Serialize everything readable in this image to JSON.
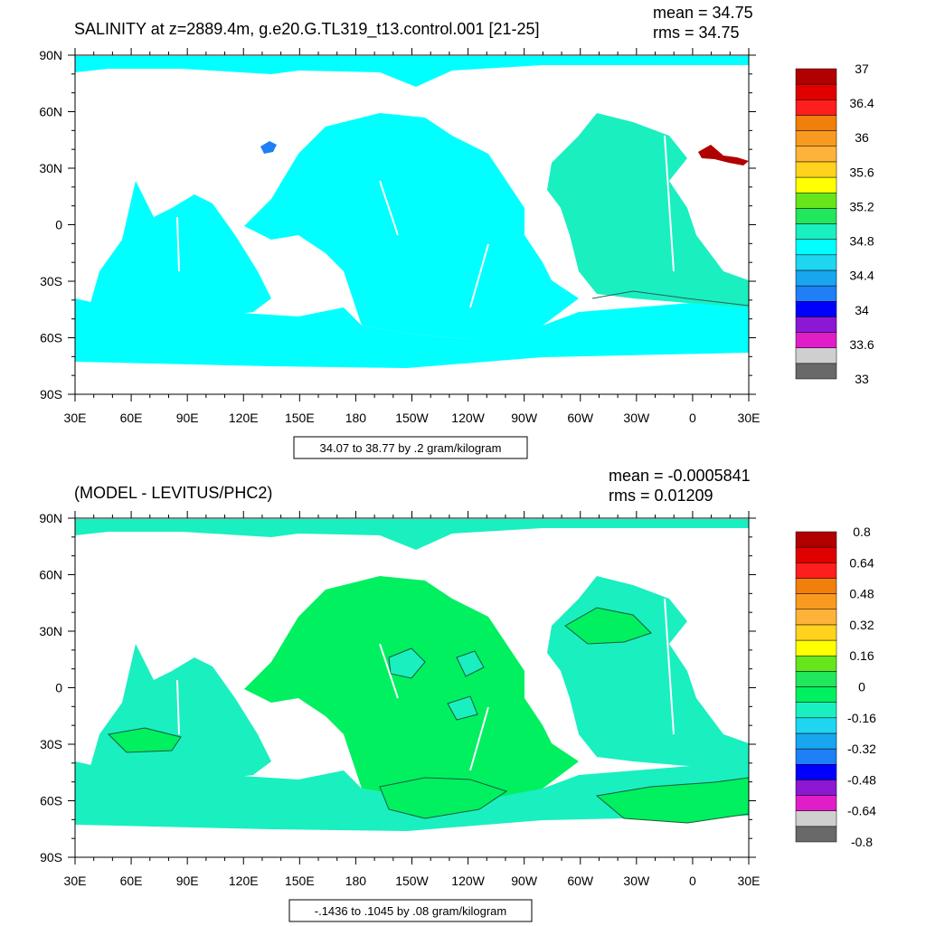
{
  "chart_data": [
    {
      "type": "heatmap",
      "title": "SALINITY at z=2889.4m, g.e20.G.TL319_t13.control.001 [21-25]",
      "stats": {
        "mean": "mean = 34.75",
        "rms": "rms = 34.75"
      },
      "x_ticks": [
        "30E",
        "60E",
        "90E",
        "120E",
        "150E",
        "180",
        "150W",
        "120W",
        "90W",
        "60W",
        "30W",
        "0",
        "30E"
      ],
      "y_ticks": [
        "90N",
        "60N",
        "30N",
        "0",
        "30S",
        "60S",
        "90S"
      ],
      "xlim": [
        30,
        390
      ],
      "ylim": [
        -90,
        90
      ],
      "contour_info": "34.07 to 38.77 by .2 gram/kilogram",
      "colorbar": {
        "colors": [
          "#696969",
          "#cfcfcf",
          "#e01ec8",
          "#8d18d4",
          "#0000ff",
          "#1e7ff7",
          "#18a6ee",
          "#1ed6f0",
          "#00ffff",
          "#1aefc0",
          "#22e65c",
          "#66e61a",
          "#ffff00",
          "#ffd21e",
          "#fdb239",
          "#f99a20",
          "#f07f0c",
          "#ff1e1e",
          "#e00000",
          "#b10000"
        ],
        "labels": [
          "37",
          "36.4",
          "36",
          "35.6",
          "35.2",
          "34.8",
          "34.4",
          "34",
          "33.6",
          "33"
        ]
      }
    },
    {
      "type": "heatmap",
      "title": "(MODEL - LEVITUS/PHC2)",
      "stats": {
        "mean": "mean = -0.0005841",
        "rms": "rms = 0.01209"
      },
      "x_ticks": [
        "30E",
        "60E",
        "90E",
        "120E",
        "150E",
        "180",
        "150W",
        "120W",
        "90W",
        "60W",
        "30W",
        "0",
        "30E"
      ],
      "y_ticks": [
        "90N",
        "60N",
        "30N",
        "0",
        "30S",
        "60S",
        "90S"
      ],
      "xlim": [
        30,
        390
      ],
      "ylim": [
        -90,
        90
      ],
      "contour_info": "-.1436 to .1045 by .08 gram/kilogram",
      "colorbar": {
        "colors": [
          "#696969",
          "#cfcfcf",
          "#e01ec8",
          "#8d18d4",
          "#0000ff",
          "#1e7ff7",
          "#18a6ee",
          "#1ed6f0",
          "#1aefc0",
          "#00f060",
          "#22e65c",
          "#66e61a",
          "#ffff00",
          "#ffd21e",
          "#fdb239",
          "#f99a20",
          "#f07f0c",
          "#ff1e1e",
          "#e00000",
          "#b10000"
        ],
        "labels": [
          "0.8",
          "0.64",
          "0.48",
          "0.32",
          "0.16",
          "0",
          "-0.16",
          "-0.32",
          "-0.48",
          "-0.64",
          "-0.8"
        ]
      }
    }
  ],
  "colors": {
    "ocean_top": "#00ffff",
    "ocean_top_atlantic": "#1aefc0",
    "ocean_top_mediterranean": "#b10000",
    "ocean_top_japan_sea": "#1e7ff7",
    "ocean_bottom_zero": "#1aefc0",
    "ocean_bottom_positive": "#00f060",
    "land": "#ffffff"
  }
}
